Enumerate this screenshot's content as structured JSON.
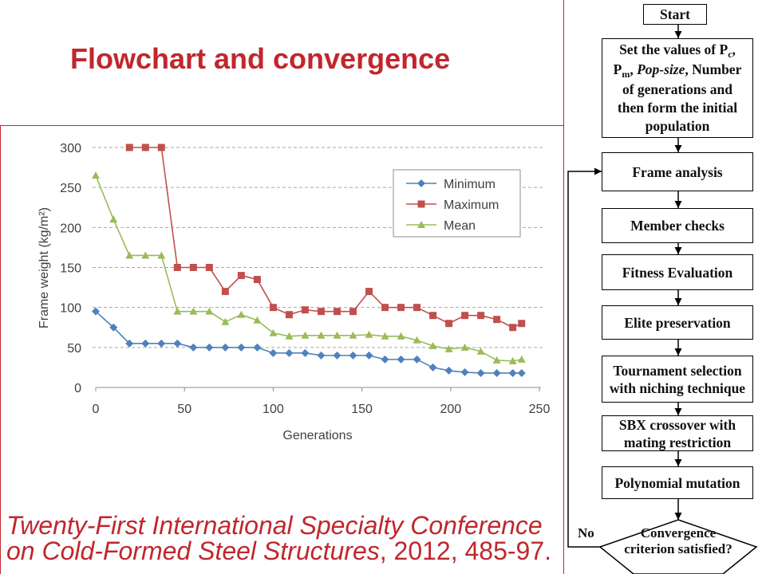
{
  "slide": {
    "title": "Flowchart and convergence",
    "accent_color": "#c0272d"
  },
  "chart_data": {
    "type": "line",
    "xlabel": "Generations",
    "ylabel": "Frame weight (kg/m²)",
    "xlim": [
      0,
      250
    ],
    "ylim": [
      0,
      300
    ],
    "xticks": [
      0,
      50,
      100,
      150,
      200,
      250
    ],
    "yticks": [
      0,
      50,
      100,
      150,
      200,
      250,
      300
    ],
    "grid": "horizontal dashed",
    "legend_position": "top-right",
    "x": [
      0,
      10,
      19,
      28,
      37,
      46,
      55,
      64,
      73,
      82,
      91,
      100,
      109,
      118,
      127,
      136,
      145,
      154,
      163,
      172,
      181,
      190,
      199,
      208,
      217,
      226,
      235,
      240
    ],
    "series": [
      {
        "name": "Minimum",
        "color": "#4f81bd",
        "marker": "diamond",
        "values": [
          95,
          75,
          55,
          55,
          55,
          55,
          50,
          50,
          50,
          50,
          50,
          43,
          43,
          43,
          40,
          40,
          40,
          40,
          35,
          35,
          35,
          25,
          21,
          19,
          18,
          18,
          18,
          18
        ]
      },
      {
        "name": "Maximum",
        "color": "#c0504d",
        "marker": "square",
        "values": [
          null,
          null,
          300,
          300,
          300,
          150,
          150,
          150,
          120,
          140,
          135,
          100,
          91,
          97,
          95,
          95,
          95,
          120,
          100,
          100,
          100,
          90,
          80,
          90,
          90,
          85,
          75,
          80
        ]
      },
      {
        "name": "Mean",
        "color": "#9bbb59",
        "marker": "triangle",
        "values": [
          265,
          210,
          165,
          165,
          165,
          95,
          95,
          95,
          82,
          91,
          84,
          68,
          64,
          65,
          65,
          65,
          65,
          66,
          64,
          64,
          59,
          52,
          48,
          50,
          45,
          34,
          33,
          35
        ]
      }
    ]
  },
  "citation": {
    "line1": "Twenty-First International Specialty Conference",
    "line2_italic": "on Cold-Formed Steel Structures",
    "line2_rest": ", 2012, 485-97."
  },
  "flowchart": {
    "start": "Start",
    "init": {
      "p1": "Set the values of P",
      "p1_sub": "c",
      "p1_end": ",",
      "p2": "P",
      "p2_sub": "m",
      "p2_sep": ", ",
      "p2_italic": "Pop-size",
      "p2_end": ", Number",
      "line3": "of generations and",
      "line4": "then form the initial",
      "line5": "population"
    },
    "frame_analysis": "Frame analysis",
    "member_checks": "Member checks",
    "fitness_evaluation": "Fitness Evaluation",
    "elite_preservation": "Elite preservation",
    "tournament": {
      "line1": "Tournament selection",
      "line2": "with niching technique"
    },
    "sbx": {
      "line1": "SBX crossover with",
      "line2": "mating restriction"
    },
    "mutation": "Polynomial mutation",
    "decision": {
      "line1": "Convergence",
      "line2": "criterion satisfied?"
    },
    "no_label": "No"
  }
}
